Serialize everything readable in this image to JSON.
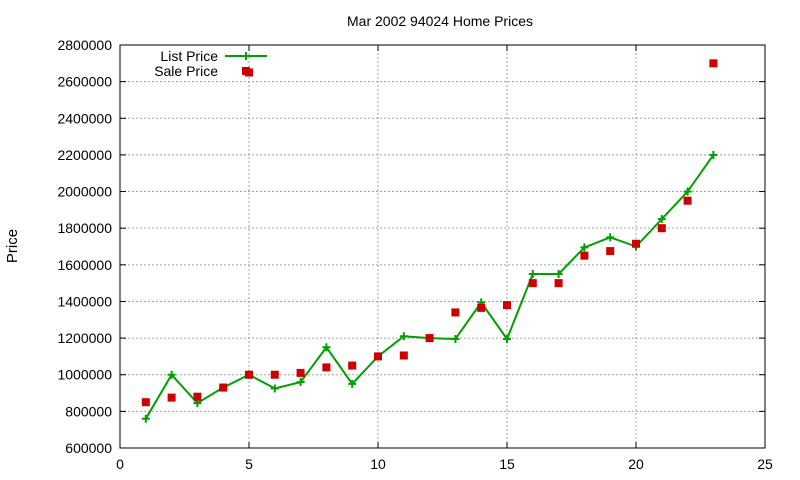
{
  "chart_data": {
    "type": "line",
    "title": "Mar 2002 94024 Home Prices",
    "xlabel": "",
    "ylabel": "Price",
    "xlim": [
      0,
      25
    ],
    "ylim": [
      600000,
      2800000
    ],
    "xticks": [
      0,
      5,
      10,
      15,
      20,
      25
    ],
    "yticks": [
      600000,
      800000,
      1000000,
      1200000,
      1400000,
      1600000,
      1800000,
      2000000,
      2200000,
      2400000,
      2600000,
      2800000
    ],
    "grid": true,
    "legend_position": "top-left",
    "series": [
      {
        "name": "List Price",
        "kind": "line-points",
        "color": "#00a000",
        "x": [
          1,
          2,
          3,
          4,
          5,
          6,
          7,
          8,
          9,
          10,
          11,
          12,
          13,
          14,
          15,
          16,
          17,
          18,
          19,
          20,
          21,
          22,
          23
        ],
        "y": [
          760000,
          1000000,
          845000,
          930000,
          1000000,
          925000,
          960000,
          1150000,
          950000,
          1100000,
          1210000,
          1200000,
          1195000,
          1395000,
          1195000,
          1550000,
          1550000,
          1695000,
          1750000,
          1700000,
          1850000,
          2000000,
          2200000
        ]
      },
      {
        "name": "Sale Price",
        "kind": "points",
        "color": "#cc0000",
        "x": [
          1,
          2,
          3,
          4,
          5,
          5,
          6,
          7,
          8,
          9,
          10,
          11,
          12,
          13,
          14,
          15,
          16,
          17,
          18,
          19,
          20,
          21,
          22,
          23
        ],
        "y": [
          850000,
          875000,
          880000,
          930000,
          1000000,
          2650000,
          1000000,
          1010000,
          1040000,
          1050000,
          1100000,
          1105000,
          1200000,
          1340000,
          1365000,
          1380000,
          1500000,
          1500000,
          1650000,
          1675000,
          1715000,
          1800000,
          1950000,
          2700000
        ]
      }
    ]
  }
}
